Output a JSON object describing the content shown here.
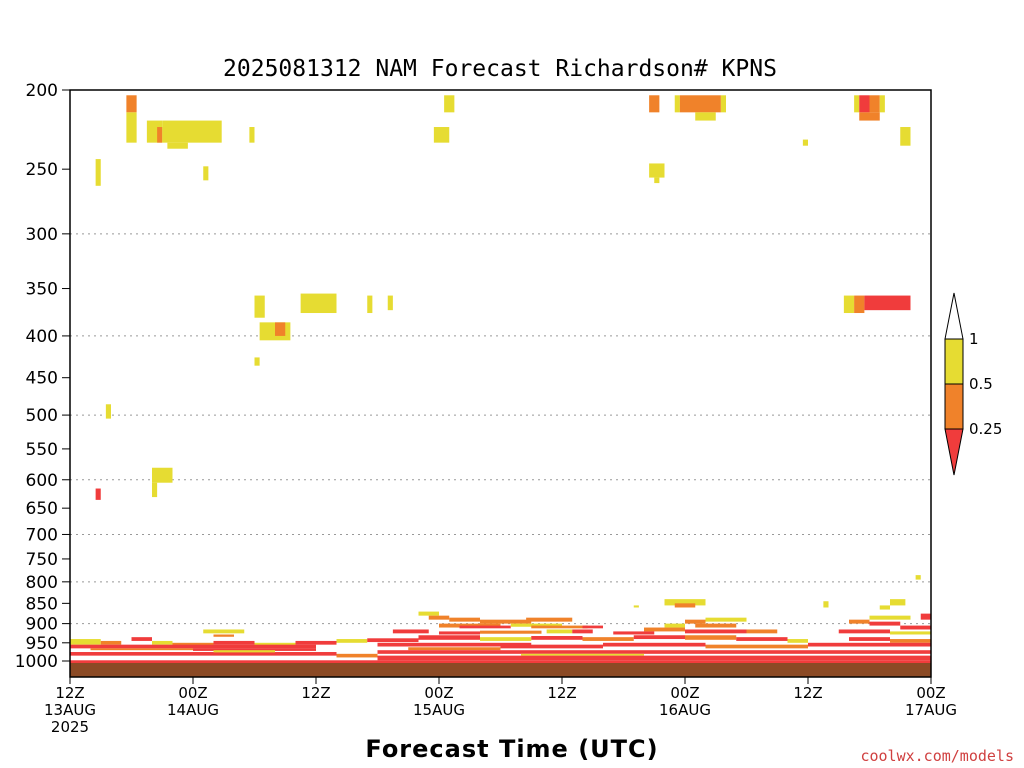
{
  "chart_data": {
    "type": "heatmap",
    "title": "2025081312 NAM Forecast Richardson# KPNS",
    "xlabel": "Forecast Time (UTC)",
    "ylabel": "",
    "credit": "coolwx.com/models",
    "x_unit": "forecast hour from 2025-08-13 12Z",
    "xlim": [
      0,
      84
    ],
    "x_ticks": [
      {
        "hour": 0,
        "line1": "12Z",
        "line2": "13AUG",
        "line3": "2025"
      },
      {
        "hour": 12,
        "line1": "00Z",
        "line2": "14AUG",
        "line3": ""
      },
      {
        "hour": 24,
        "line1": "12Z",
        "line2": "",
        "line3": ""
      },
      {
        "hour": 36,
        "line1": "00Z",
        "line2": "15AUG",
        "line3": ""
      },
      {
        "hour": 48,
        "line1": "12Z",
        "line2": "",
        "line3": ""
      },
      {
        "hour": 60,
        "line1": "00Z",
        "line2": "16AUG",
        "line3": ""
      },
      {
        "hour": 72,
        "line1": "12Z",
        "line2": "",
        "line3": ""
      },
      {
        "hour": 84,
        "line1": "00Z",
        "line2": "17AUG",
        "line3": ""
      }
    ],
    "y_unit": "pressure (hPa)",
    "ylim": [
      1000,
      200
    ],
    "y_scale": "log",
    "y_ticks": [
      200,
      250,
      300,
      350,
      400,
      450,
      500,
      550,
      600,
      650,
      700,
      750,
      800,
      850,
      900,
      950,
      1000
    ],
    "y_gridlines": [
      300,
      400,
      500,
      600,
      700,
      800,
      900
    ],
    "ground": {
      "color": "#8b4a25",
      "pressure_top": 1010
    },
    "legend": {
      "placement": "right",
      "bins": [
        {
          "from": null,
          "to": 0.25,
          "label": "0.25",
          "color": "#f03c3c"
        },
        {
          "from": 0.25,
          "to": 0.5,
          "label": "0.5",
          "color": "#f0822a"
        },
        {
          "from": 0.5,
          "to": 1,
          "label": "1",
          "color": "#e6dc32"
        },
        {
          "from": 1,
          "to": null,
          "label": "",
          "color": "#ffffff"
        }
      ]
    },
    "colors": {
      "red": "#f03c3c",
      "orange": "#f0822a",
      "yellow": "#e6dc32"
    },
    "cells": [
      {
        "x0": 5.5,
        "x1": 6.5,
        "p0": 203,
        "p1": 213,
        "c": "orange"
      },
      {
        "x0": 5.5,
        "x1": 6.5,
        "p0": 213,
        "p1": 232,
        "c": "yellow"
      },
      {
        "x0": 7.5,
        "x1": 9.0,
        "p0": 218,
        "p1": 232,
        "c": "yellow"
      },
      {
        "x0": 8.5,
        "x1": 9.0,
        "p0": 222,
        "p1": 232,
        "c": "orange"
      },
      {
        "x0": 9.0,
        "x1": 14.8,
        "p0": 218,
        "p1": 232,
        "c": "yellow"
      },
      {
        "x0": 9.5,
        "x1": 11.5,
        "p0": 232,
        "p1": 236,
        "c": "yellow"
      },
      {
        "x0": 13.0,
        "x1": 13.5,
        "p0": 248,
        "p1": 258,
        "c": "yellow"
      },
      {
        "x0": 2.5,
        "x1": 3.0,
        "p0": 243,
        "p1": 262,
        "c": "yellow"
      },
      {
        "x0": 17.5,
        "x1": 18.0,
        "p0": 222,
        "p1": 232,
        "c": "yellow"
      },
      {
        "x0": 36.5,
        "x1": 37.5,
        "p0": 203,
        "p1": 213,
        "c": "yellow"
      },
      {
        "x0": 35.5,
        "x1": 37.0,
        "p0": 222,
        "p1": 232,
        "c": "yellow"
      },
      {
        "x0": 56.5,
        "x1": 57.5,
        "p0": 203,
        "p1": 213,
        "c": "orange"
      },
      {
        "x0": 59.0,
        "x1": 59.5,
        "p0": 203,
        "p1": 213,
        "c": "yellow"
      },
      {
        "x0": 59.5,
        "x1": 63.5,
        "p0": 203,
        "p1": 213,
        "c": "orange"
      },
      {
        "x0": 61.0,
        "x1": 63.0,
        "p0": 213,
        "p1": 218,
        "c": "yellow"
      },
      {
        "x0": 63.5,
        "x1": 64.0,
        "p0": 203,
        "p1": 213,
        "c": "yellow"
      },
      {
        "x0": 56.5,
        "x1": 58.0,
        "p0": 246,
        "p1": 256,
        "c": "yellow"
      },
      {
        "x0": 57.0,
        "x1": 57.5,
        "p0": 256,
        "p1": 260,
        "c": "yellow"
      },
      {
        "x0": 71.5,
        "x1": 72.0,
        "p0": 230,
        "p1": 234,
        "c": "yellow"
      },
      {
        "x0": 76.5,
        "x1": 77.0,
        "p0": 203,
        "p1": 213,
        "c": "yellow"
      },
      {
        "x0": 77.0,
        "x1": 78.0,
        "p0": 203,
        "p1": 213,
        "c": "red"
      },
      {
        "x0": 77.0,
        "x1": 79.0,
        "p0": 213,
        "p1": 218,
        "c": "orange"
      },
      {
        "x0": 78.0,
        "x1": 79.0,
        "p0": 203,
        "p1": 213,
        "c": "orange"
      },
      {
        "x0": 79.0,
        "x1": 79.5,
        "p0": 203,
        "p1": 213,
        "c": "yellow"
      },
      {
        "x0": 81.0,
        "x1": 82.0,
        "p0": 222,
        "p1": 234,
        "c": "yellow"
      },
      {
        "x0": 18.0,
        "x1": 19.0,
        "p0": 357,
        "p1": 380,
        "c": "yellow"
      },
      {
        "x0": 22.5,
        "x1": 26.0,
        "p0": 355,
        "p1": 375,
        "c": "yellow"
      },
      {
        "x0": 29.0,
        "x1": 29.5,
        "p0": 357,
        "p1": 375,
        "c": "yellow"
      },
      {
        "x0": 31.0,
        "x1": 31.5,
        "p0": 357,
        "p1": 372,
        "c": "yellow"
      },
      {
        "x0": 18.5,
        "x1": 21.5,
        "p0": 385,
        "p1": 405,
        "c": "yellow"
      },
      {
        "x0": 20.0,
        "x1": 21.0,
        "p0": 385,
        "p1": 400,
        "c": "orange"
      },
      {
        "x0": 18.0,
        "x1": 18.5,
        "p0": 425,
        "p1": 435,
        "c": "yellow"
      },
      {
        "x0": 75.5,
        "x1": 76.5,
        "p0": 357,
        "p1": 375,
        "c": "yellow"
      },
      {
        "x0": 76.5,
        "x1": 77.5,
        "p0": 357,
        "p1": 375,
        "c": "orange"
      },
      {
        "x0": 77.5,
        "x1": 82.0,
        "p0": 357,
        "p1": 372,
        "c": "red"
      },
      {
        "x0": 3.5,
        "x1": 4.0,
        "p0": 485,
        "p1": 505,
        "c": "yellow"
      },
      {
        "x0": 8.0,
        "x1": 10.0,
        "p0": 580,
        "p1": 605,
        "c": "yellow"
      },
      {
        "x0": 8.0,
        "x1": 8.5,
        "p0": 605,
        "p1": 630,
        "c": "yellow"
      },
      {
        "x0": 2.5,
        "x1": 3.0,
        "p0": 615,
        "p1": 635,
        "c": "red"
      },
      {
        "x0": 82.5,
        "x1": 83.0,
        "p0": 785,
        "p1": 795,
        "c": "yellow"
      },
      {
        "x0": 58.0,
        "x1": 62.0,
        "p0": 840,
        "p1": 855,
        "c": "yellow"
      },
      {
        "x0": 59.0,
        "x1": 61.0,
        "p0": 850,
        "p1": 860,
        "c": "orange"
      },
      {
        "x0": 55.0,
        "x1": 55.5,
        "p0": 855,
        "p1": 860,
        "c": "yellow"
      },
      {
        "x0": 73.5,
        "x1": 74.0,
        "p0": 845,
        "p1": 860,
        "c": "yellow"
      },
      {
        "x0": 80.0,
        "x1": 81.5,
        "p0": 840,
        "p1": 855,
        "c": "yellow"
      },
      {
        "x0": 79.0,
        "x1": 80.0,
        "p0": 855,
        "p1": 865,
        "c": "yellow"
      },
      {
        "x0": 34.0,
        "x1": 36.0,
        "p0": 870,
        "p1": 880,
        "c": "yellow"
      },
      {
        "x0": 35.0,
        "x1": 37.0,
        "p0": 880,
        "p1": 890,
        "c": "orange"
      },
      {
        "x0": 37.0,
        "x1": 40.0,
        "p0": 885,
        "p1": 895,
        "c": "orange"
      },
      {
        "x0": 40.0,
        "x1": 45.0,
        "p0": 890,
        "p1": 900,
        "c": "orange"
      },
      {
        "x0": 44.5,
        "x1": 49.0,
        "p0": 885,
        "p1": 895,
        "c": "orange"
      },
      {
        "x0": 36.0,
        "x1": 42.0,
        "p0": 900,
        "p1": 910,
        "c": "orange"
      },
      {
        "x0": 38.0,
        "x1": 43.0,
        "p0": 905,
        "p1": 912,
        "c": "red"
      },
      {
        "x0": 43.0,
        "x1": 48.0,
        "p0": 900,
        "p1": 908,
        "c": "yellow"
      },
      {
        "x0": 45.0,
        "x1": 50.5,
        "p0": 905,
        "p1": 912,
        "c": "orange"
      },
      {
        "x0": 50.0,
        "x1": 52.0,
        "p0": 905,
        "p1": 912,
        "c": "red"
      },
      {
        "x0": 31.5,
        "x1": 35.0,
        "p0": 915,
        "p1": 925,
        "c": "red"
      },
      {
        "x0": 36.0,
        "x1": 40.0,
        "p0": 920,
        "p1": 928,
        "c": "red"
      },
      {
        "x0": 40.0,
        "x1": 46.0,
        "p0": 918,
        "p1": 926,
        "c": "orange"
      },
      {
        "x0": 46.5,
        "x1": 49.0,
        "p0": 915,
        "p1": 925,
        "c": "yellow"
      },
      {
        "x0": 49.0,
        "x1": 51.0,
        "p0": 915,
        "p1": 925,
        "c": "red"
      },
      {
        "x0": 13.0,
        "x1": 17.0,
        "p0": 915,
        "p1": 925,
        "c": "yellow"
      },
      {
        "x0": 14.0,
        "x1": 16.0,
        "p0": 928,
        "p1": 934,
        "c": "orange"
      },
      {
        "x0": 60.0,
        "x1": 62.0,
        "p0": 890,
        "p1": 900,
        "c": "orange"
      },
      {
        "x0": 62.0,
        "x1": 66.0,
        "p0": 885,
        "p1": 895,
        "c": "yellow"
      },
      {
        "x0": 58.0,
        "x1": 60.0,
        "p0": 900,
        "p1": 910,
        "c": "yellow"
      },
      {
        "x0": 61.0,
        "x1": 65.0,
        "p0": 900,
        "p1": 910,
        "c": "orange"
      },
      {
        "x0": 56.0,
        "x1": 60.0,
        "p0": 910,
        "p1": 920,
        "c": "orange"
      },
      {
        "x0": 60.0,
        "x1": 66.0,
        "p0": 915,
        "p1": 925,
        "c": "red"
      },
      {
        "x0": 66.0,
        "x1": 69.0,
        "p0": 915,
        "p1": 925,
        "c": "orange"
      },
      {
        "x0": 53.0,
        "x1": 57.0,
        "p0": 920,
        "p1": 928,
        "c": "red"
      },
      {
        "x0": 78.0,
        "x1": 82.0,
        "p0": 880,
        "p1": 890,
        "c": "yellow"
      },
      {
        "x0": 76.0,
        "x1": 78.0,
        "p0": 890,
        "p1": 900,
        "c": "orange"
      },
      {
        "x0": 78.0,
        "x1": 81.0,
        "p0": 895,
        "p1": 905,
        "c": "red"
      },
      {
        "x0": 83.0,
        "x1": 84.0,
        "p0": 875,
        "p1": 890,
        "c": "red"
      },
      {
        "x0": 81.0,
        "x1": 84.0,
        "p0": 905,
        "p1": 915,
        "c": "red"
      },
      {
        "x0": 75.0,
        "x1": 80.0,
        "p0": 915,
        "p1": 925,
        "c": "red"
      },
      {
        "x0": 80.0,
        "x1": 84.0,
        "p0": 920,
        "p1": 928,
        "c": "yellow"
      },
      {
        "x0": 0.0,
        "x1": 3.0,
        "p0": 940,
        "p1": 955,
        "c": "yellow"
      },
      {
        "x0": 3.0,
        "x1": 5.0,
        "p0": 945,
        "p1": 955,
        "c": "orange"
      },
      {
        "x0": 6.0,
        "x1": 8.0,
        "p0": 935,
        "p1": 945,
        "c": "red"
      },
      {
        "x0": 8.0,
        "x1": 10.0,
        "p0": 945,
        "p1": 955,
        "c": "yellow"
      },
      {
        "x0": 10.0,
        "x1": 14.0,
        "p0": 950,
        "p1": 960,
        "c": "orange"
      },
      {
        "x0": 14.0,
        "x1": 18.0,
        "p0": 945,
        "p1": 955,
        "c": "red"
      },
      {
        "x0": 18.0,
        "x1": 22.0,
        "p0": 950,
        "p1": 960,
        "c": "yellow"
      },
      {
        "x0": 22.0,
        "x1": 26.0,
        "p0": 945,
        "p1": 955,
        "c": "red"
      },
      {
        "x0": 26.0,
        "x1": 29.0,
        "p0": 940,
        "p1": 950,
        "c": "yellow"
      },
      {
        "x0": 29.0,
        "x1": 34.0,
        "p0": 938,
        "p1": 948,
        "c": "red"
      },
      {
        "x0": 34.0,
        "x1": 40.0,
        "p0": 930,
        "p1": 942,
        "c": "red"
      },
      {
        "x0": 40.0,
        "x1": 45.0,
        "p0": 935,
        "p1": 945,
        "c": "yellow"
      },
      {
        "x0": 45.0,
        "x1": 50.0,
        "p0": 932,
        "p1": 942,
        "c": "red"
      },
      {
        "x0": 50.0,
        "x1": 55.0,
        "p0": 935,
        "p1": 945,
        "c": "orange"
      },
      {
        "x0": 55.0,
        "x1": 60.0,
        "p0": 930,
        "p1": 940,
        "c": "red"
      },
      {
        "x0": 60.0,
        "x1": 65.0,
        "p0": 930,
        "p1": 942,
        "c": "orange"
      },
      {
        "x0": 65.0,
        "x1": 70.0,
        "p0": 935,
        "p1": 945,
        "c": "red"
      },
      {
        "x0": 70.0,
        "x1": 72.0,
        "p0": 940,
        "p1": 950,
        "c": "yellow"
      },
      {
        "x0": 76.0,
        "x1": 80.0,
        "p0": 935,
        "p1": 945,
        "c": "red"
      },
      {
        "x0": 80.0,
        "x1": 84.0,
        "p0": 940,
        "p1": 950,
        "c": "orange"
      },
      {
        "x0": 0.0,
        "x1": 24.0,
        "p0": 955,
        "p1": 965,
        "c": "red"
      },
      {
        "x0": 2.0,
        "x1": 12.0,
        "p0": 965,
        "p1": 970,
        "c": "orange"
      },
      {
        "x0": 12.0,
        "x1": 24.0,
        "p0": 965,
        "p1": 972,
        "c": "red"
      },
      {
        "x0": 0.0,
        "x1": 26.0,
        "p0": 975,
        "p1": 985,
        "c": "red"
      },
      {
        "x0": 26.0,
        "x1": 30.0,
        "p0": 980,
        "p1": 990,
        "c": "orange"
      },
      {
        "x0": 14.0,
        "x1": 20.0,
        "p0": 970,
        "p1": 976,
        "c": "yellow"
      },
      {
        "x0": 30.0,
        "x1": 45.0,
        "p0": 950,
        "p1": 960,
        "c": "red"
      },
      {
        "x0": 33.0,
        "x1": 42.0,
        "p0": 962,
        "p1": 970,
        "c": "orange"
      },
      {
        "x0": 42.0,
        "x1": 52.0,
        "p0": 955,
        "p1": 965,
        "c": "red"
      },
      {
        "x0": 52.0,
        "x1": 62.0,
        "p0": 950,
        "p1": 960,
        "c": "red"
      },
      {
        "x0": 62.0,
        "x1": 72.0,
        "p0": 955,
        "p1": 965,
        "c": "orange"
      },
      {
        "x0": 72.0,
        "x1": 84.0,
        "p0": 950,
        "p1": 960,
        "c": "red"
      },
      {
        "x0": 30.0,
        "x1": 84.0,
        "p0": 970,
        "p1": 980,
        "c": "red"
      },
      {
        "x0": 44.0,
        "x1": 56.0,
        "p0": 980,
        "p1": 985,
        "c": "yellow"
      },
      {
        "x0": 30.0,
        "x1": 84.0,
        "p0": 985,
        "p1": 998,
        "c": "red"
      },
      {
        "x0": 0.0,
        "x1": 84.0,
        "p0": 998,
        "p1": 1010,
        "c": "red"
      }
    ]
  }
}
